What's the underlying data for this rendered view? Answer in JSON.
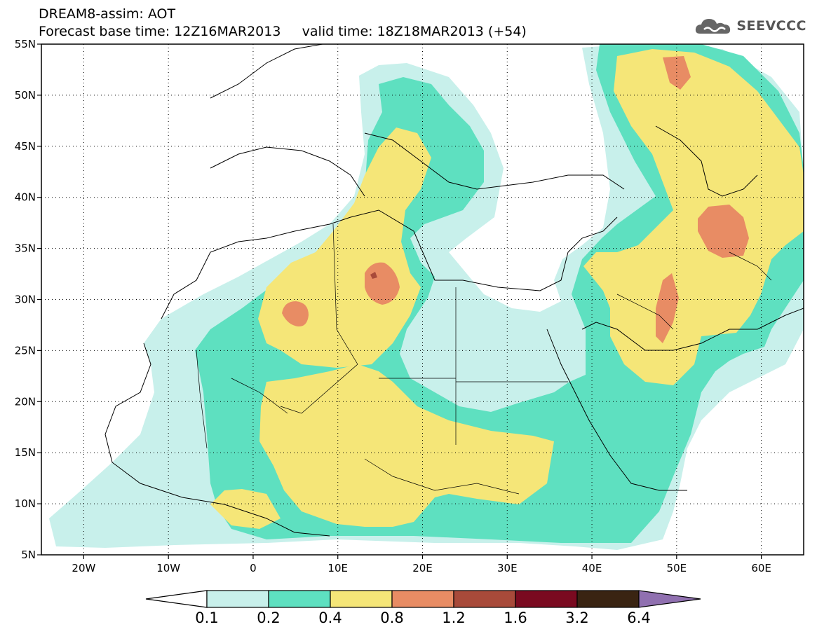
{
  "header": {
    "title": "DREAM8-assim: AOT",
    "subtitle_base": "Forecast base time: 12Z16MAR2013",
    "subtitle_valid": "valid time: 18Z18MAR2013 (+54)"
  },
  "logo": {
    "text": "SEEVCCC",
    "icon": "cloud-icon"
  },
  "map": {
    "projection": "latlon",
    "lon_range": [
      -25,
      65
    ],
    "lat_range": [
      5,
      55
    ],
    "lat_ticks": [
      "5N",
      "10N",
      "15N",
      "20N",
      "25N",
      "30N",
      "35N",
      "40N",
      "45N",
      "50N",
      "55N"
    ],
    "lon_ticks": [
      "20W",
      "10W",
      "0",
      "10E",
      "20E",
      "30E",
      "40E",
      "50E",
      "60E"
    ],
    "grid": true
  },
  "legend": {
    "values": [
      "0.1",
      "0.2",
      "0.4",
      "0.8",
      "1.2",
      "1.6",
      "3.2",
      "6.4"
    ],
    "colors": {
      "below": "#ffffff",
      "c1": "#c8f0eb",
      "c2": "#5ee0c0",
      "c3": "#f5e678",
      "c4": "#e88c64",
      "c5": "#a84a3a",
      "c6": "#7a0a20",
      "c7": "#3a2412",
      "above": "#9070b0"
    }
  }
}
